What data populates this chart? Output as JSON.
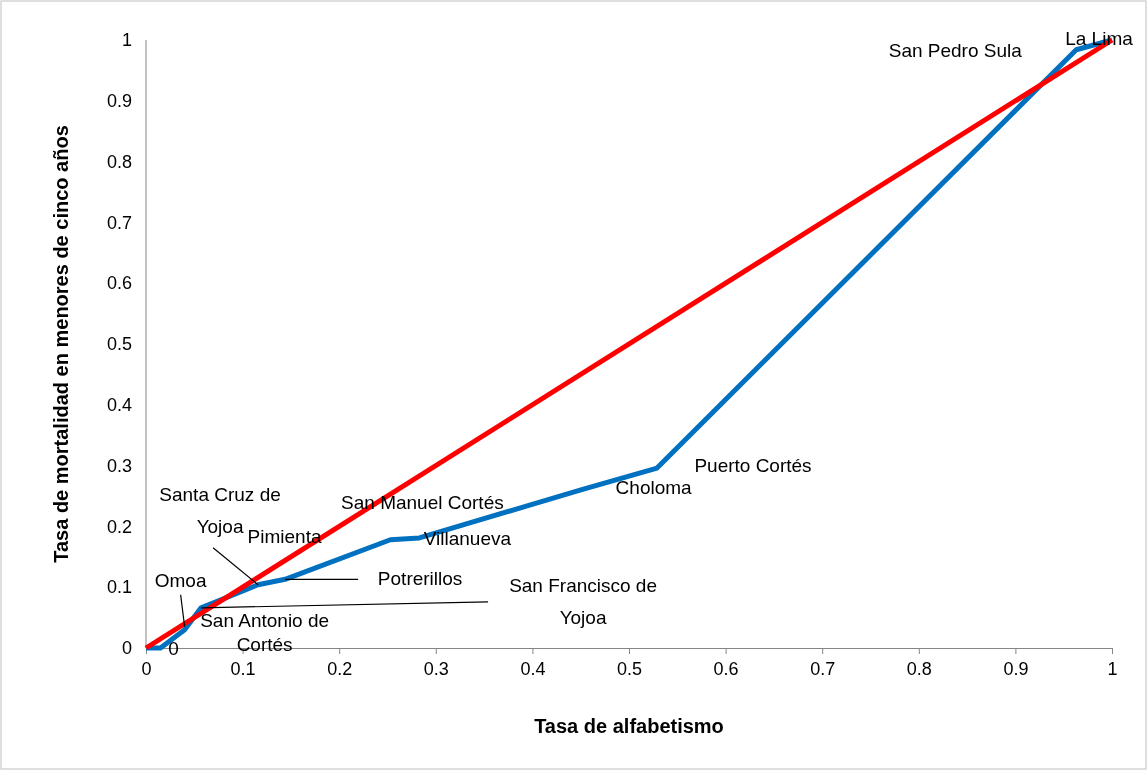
{
  "chart_data": {
    "type": "line",
    "xlabel": "Tasa de alfabetismo",
    "ylabel": "Tasa de mortalidad en menores de cinco años",
    "xlim": [
      0,
      1
    ],
    "ylim": [
      0,
      1
    ],
    "xticks": [
      0,
      0.1,
      0.2,
      0.3,
      0.4,
      0.5,
      0.6,
      0.7,
      0.8,
      0.9,
      1
    ],
    "yticks": [
      0,
      0.1,
      0.2,
      0.3,
      0.4,
      0.5,
      0.6,
      0.7,
      0.8,
      0.9,
      1
    ],
    "grid": false,
    "marker": "none",
    "line_style": "solid",
    "series": [
      {
        "color": "#0070c0",
        "x": [
          0,
          0.015,
          0.04,
          0.057,
          0.116,
          0.144,
          0.253,
          0.283,
          0.452,
          0.529,
          0.963,
          1
        ],
        "values": [
          0,
          0,
          0.03,
          0.066,
          0.104,
          0.113,
          0.178,
          0.181,
          0.261,
          0.296,
          0.984,
          1
        ]
      },
      {
        "color": "#ff0000",
        "x": [
          0,
          1
        ],
        "values": [
          0,
          1
        ]
      }
    ],
    "annotations": [
      {
        "text": "0",
        "x": 0.015,
        "y": 0
      },
      {
        "text": "San Antonio de Cortés",
        "x": 0.04,
        "y": 0.03
      },
      {
        "text": "Omoa",
        "x": 0.04,
        "y": 0.035
      },
      {
        "text": "San Francisco de Yojoa",
        "x": 0.057,
        "y": 0.066
      },
      {
        "text": "Santa Cruz de Yojoa",
        "x": 0.116,
        "y": 0.104
      },
      {
        "text": "Pimienta",
        "x": 0.13,
        "y": 0.108
      },
      {
        "text": "Potrerillos",
        "x": 0.144,
        "y": 0.113
      },
      {
        "text": "San Manuel Cortés",
        "x": 0.253,
        "y": 0.178
      },
      {
        "text": "Villanueva",
        "x": 0.283,
        "y": 0.181
      },
      {
        "text": "Choloma",
        "x": 0.452,
        "y": 0.261
      },
      {
        "text": "Puerto Cortés",
        "x": 0.529,
        "y": 0.296
      },
      {
        "text": "San Pedro Sula",
        "x": 0.963,
        "y": 0.984
      },
      {
        "text": "La Lima",
        "x": 1,
        "y": 1
      }
    ]
  }
}
